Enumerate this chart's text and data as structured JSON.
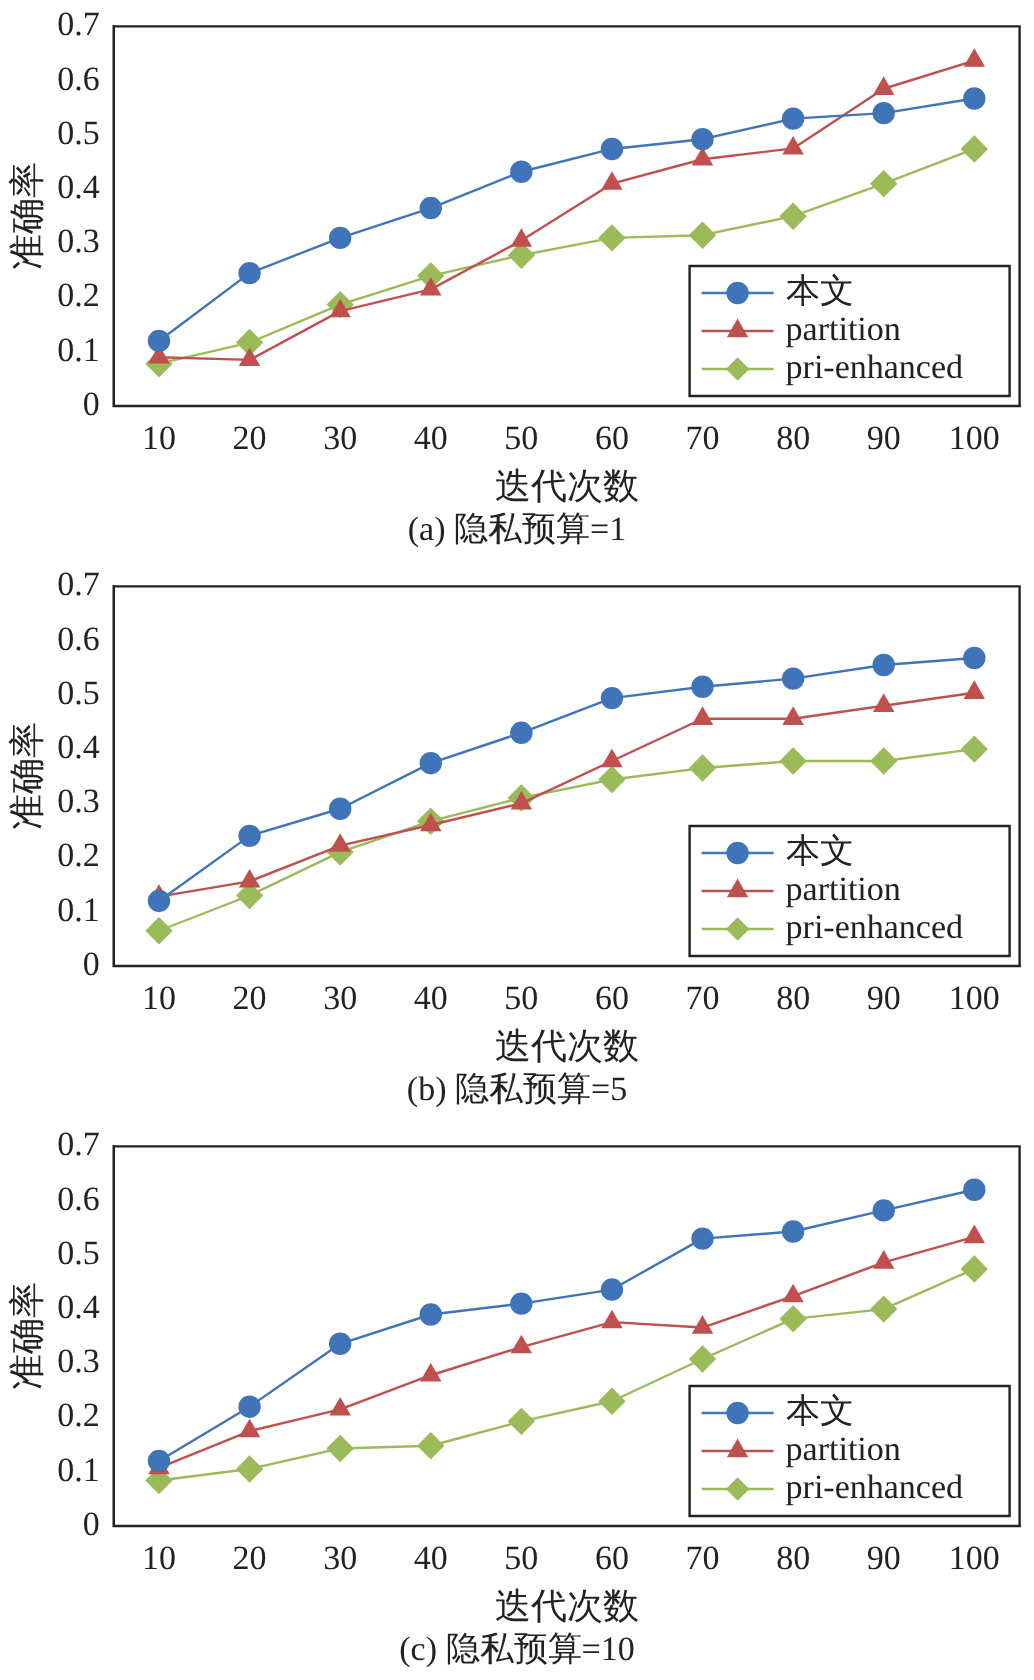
{
  "chart_data": [
    {
      "type": "line",
      "xlabel": "迭代次数",
      "ylabel": "准确率",
      "annotations": [
        "(a) 隐私预算=1"
      ],
      "categories": [
        "10",
        "20",
        "30",
        "40",
        "50",
        "60",
        "70",
        "80",
        "90",
        "100"
      ],
      "ylim": [
        0,
        0.7
      ],
      "yticks": [
        0,
        0.1,
        0.2,
        0.3,
        0.4,
        0.5,
        0.6,
        0.7
      ],
      "grid": false,
      "legend": "bottom right",
      "series": [
        {
          "name": "本文",
          "color": "#3f74b8",
          "marker": "circle",
          "values": [
            0.12,
            0.245,
            0.31,
            0.365,
            0.432,
            0.474,
            0.492,
            0.53,
            0.54,
            0.567
          ]
        },
        {
          "name": "partition",
          "color": "#c0504d",
          "marker": "triangle",
          "values": [
            0.09,
            0.085,
            0.175,
            0.215,
            0.305,
            0.41,
            0.455,
            0.475,
            0.585,
            0.637
          ]
        },
        {
          "name": "pri-enhanced",
          "color": "#9bbb59",
          "marker": "diamond",
          "values": [
            0.078,
            0.117,
            0.187,
            0.24,
            0.278,
            0.31,
            0.315,
            0.35,
            0.41,
            0.474
          ]
        }
      ]
    },
    {
      "type": "line",
      "xlabel": "迭代次数",
      "ylabel": "准确率",
      "annotations": [
        "(b) 隐私预算=5"
      ],
      "categories": [
        "10",
        "20",
        "30",
        "40",
        "50",
        "60",
        "70",
        "80",
        "90",
        "100"
      ],
      "ylim": [
        0,
        0.7
      ],
      "yticks": [
        0,
        0.1,
        0.2,
        0.3,
        0.4,
        0.5,
        0.6,
        0.7
      ],
      "grid": false,
      "legend": "bottom right",
      "series": [
        {
          "name": "本文",
          "color": "#3f74b8",
          "marker": "circle",
          "values": [
            0.12,
            0.24,
            0.29,
            0.374,
            0.43,
            0.494,
            0.515,
            0.53,
            0.555,
            0.568
          ]
        },
        {
          "name": "partition",
          "color": "#c0504d",
          "marker": "triangle",
          "values": [
            0.128,
            0.156,
            0.222,
            0.26,
            0.3,
            0.378,
            0.456,
            0.456,
            0.48,
            0.504
          ]
        },
        {
          "name": "pri-enhanced",
          "color": "#9bbb59",
          "marker": "diamond",
          "values": [
            0.065,
            0.13,
            0.21,
            0.267,
            0.31,
            0.344,
            0.365,
            0.378,
            0.378,
            0.4
          ]
        }
      ]
    },
    {
      "type": "line",
      "xlabel": "迭代次数",
      "ylabel": "准确率",
      "annotations": [
        "(c) 隐私预算=10"
      ],
      "categories": [
        "10",
        "20",
        "30",
        "40",
        "50",
        "60",
        "70",
        "80",
        "90",
        "100"
      ],
      "ylim": [
        0,
        0.7
      ],
      "yticks": [
        0,
        0.1,
        0.2,
        0.3,
        0.4,
        0.5,
        0.6,
        0.7
      ],
      "grid": false,
      "legend": "bottom right",
      "series": [
        {
          "name": "本文",
          "color": "#3f74b8",
          "marker": "circle",
          "values": [
            0.12,
            0.22,
            0.336,
            0.39,
            0.41,
            0.436,
            0.53,
            0.543,
            0.582,
            0.62
          ]
        },
        {
          "name": "partition",
          "color": "#c0504d",
          "marker": "triangle",
          "values": [
            0.107,
            0.175,
            0.215,
            0.278,
            0.33,
            0.376,
            0.366,
            0.424,
            0.486,
            0.533
          ]
        },
        {
          "name": "pri-enhanced",
          "color": "#9bbb59",
          "marker": "diamond",
          "values": [
            0.084,
            0.105,
            0.143,
            0.148,
            0.193,
            0.23,
            0.308,
            0.382,
            0.4,
            0.474
          ]
        }
      ]
    }
  ]
}
